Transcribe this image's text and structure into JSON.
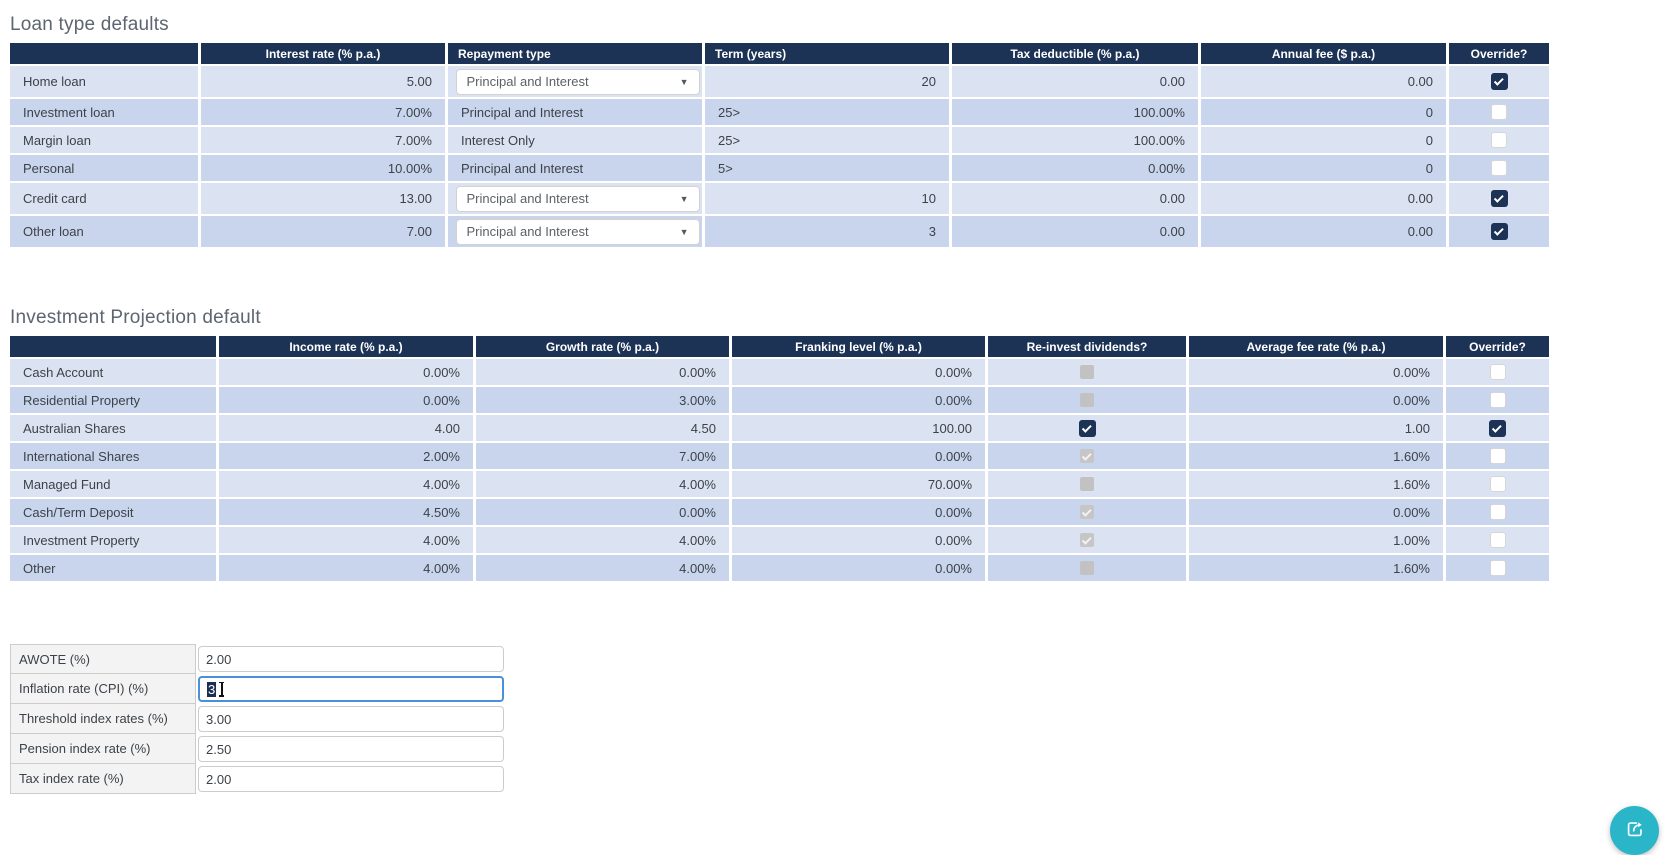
{
  "colors": {
    "header_navy": "#1c3356",
    "row_light": "#dbe3f3",
    "row_dark": "#c9d5ed",
    "focus_blue": "#4a8fd9",
    "fab_teal": "#2ab5c9",
    "disabled_gray": "#c2c2c2"
  },
  "loan_table": {
    "title": "Loan type defaults",
    "columns": [
      "",
      "Interest rate (% p.a.)",
      "Repayment type",
      "Term (years)",
      "Tax deductible (% p.a.)",
      "Annual fee ($ p.a.)",
      "Override?"
    ],
    "rows": [
      {
        "label": "Home loan",
        "interest": "5.00",
        "repayment": "Principal and Interest",
        "term": "20",
        "tax": "0.00",
        "fee": "0.00",
        "override": true,
        "editable": true
      },
      {
        "label": "Investment loan",
        "interest": "7.00%",
        "repayment": "Principal and Interest",
        "term": "25>",
        "tax": "100.00%",
        "fee": "0",
        "override": false,
        "editable": false
      },
      {
        "label": "Margin loan",
        "interest": "7.00%",
        "repayment": "Interest Only",
        "term": "25>",
        "tax": "100.00%",
        "fee": "0",
        "override": false,
        "editable": false
      },
      {
        "label": "Personal",
        "interest": "10.00%",
        "repayment": "Principal and Interest",
        "term": "5>",
        "tax": "0.00%",
        "fee": "0",
        "override": false,
        "editable": false
      },
      {
        "label": "Credit card",
        "interest": "13.00",
        "repayment": "Principal and Interest",
        "term": "10",
        "tax": "0.00",
        "fee": "0.00",
        "override": true,
        "editable": true
      },
      {
        "label": "Other loan",
        "interest": "7.00",
        "repayment": "Principal and Interest",
        "term": "3",
        "tax": "0.00",
        "fee": "0.00",
        "override": true,
        "editable": true
      }
    ],
    "dropdown_caret_icon": "▼"
  },
  "investment_table": {
    "title": "Investment Projection default",
    "columns": [
      "",
      "Income rate (% p.a.)",
      "Growth rate (% p.a.)",
      "Franking level (% p.a.)",
      "Re-invest dividends?",
      "Average fee rate (% p.a.)",
      "Override?"
    ],
    "rows": [
      {
        "label": "Cash Account",
        "income": "0.00%",
        "growth": "0.00%",
        "franking": "0.00%",
        "reinvest": "disabled-unchecked",
        "avg_fee": "0.00%",
        "override": false
      },
      {
        "label": "Residential Property",
        "income": "0.00%",
        "growth": "3.00%",
        "franking": "0.00%",
        "reinvest": "disabled-unchecked",
        "avg_fee": "0.00%",
        "override": false
      },
      {
        "label": "Australian Shares",
        "income": "4.00",
        "growth": "4.50",
        "franking": "100.00",
        "reinvest": "checked",
        "avg_fee": "1.00",
        "override": true
      },
      {
        "label": "International Shares",
        "income": "2.00%",
        "growth": "7.00%",
        "franking": "0.00%",
        "reinvest": "disabled-checked",
        "avg_fee": "1.60%",
        "override": false
      },
      {
        "label": "Managed Fund",
        "income": "4.00%",
        "growth": "4.00%",
        "franking": "70.00%",
        "reinvest": "disabled-unchecked",
        "avg_fee": "1.60%",
        "override": false
      },
      {
        "label": "Cash/Term Deposit",
        "income": "4.50%",
        "growth": "0.00%",
        "franking": "0.00%",
        "reinvest": "disabled-checked",
        "avg_fee": "0.00%",
        "override": false
      },
      {
        "label": "Investment Property",
        "income": "4.00%",
        "growth": "4.00%",
        "franking": "0.00%",
        "reinvest": "disabled-checked",
        "avg_fee": "1.00%",
        "override": false
      },
      {
        "label": "Other",
        "income": "4.00%",
        "growth": "4.00%",
        "franking": "0.00%",
        "reinvest": "disabled-unchecked",
        "avg_fee": "1.60%",
        "override": false
      }
    ]
  },
  "index_form": {
    "rows": [
      {
        "label": "AWOTE (%)",
        "value": "2.00",
        "focused": false
      },
      {
        "label": "Inflation rate (CPI) (%)",
        "value": "3",
        "focused": true
      },
      {
        "label": "Threshold index rates (%)",
        "value": "3.00",
        "focused": false
      },
      {
        "label": "Pension index rate (%)",
        "value": "2.50",
        "focused": false
      },
      {
        "label": "Tax index rate (%)",
        "value": "2.00",
        "focused": false
      }
    ]
  },
  "fab": {
    "icon": "share-export-icon"
  }
}
